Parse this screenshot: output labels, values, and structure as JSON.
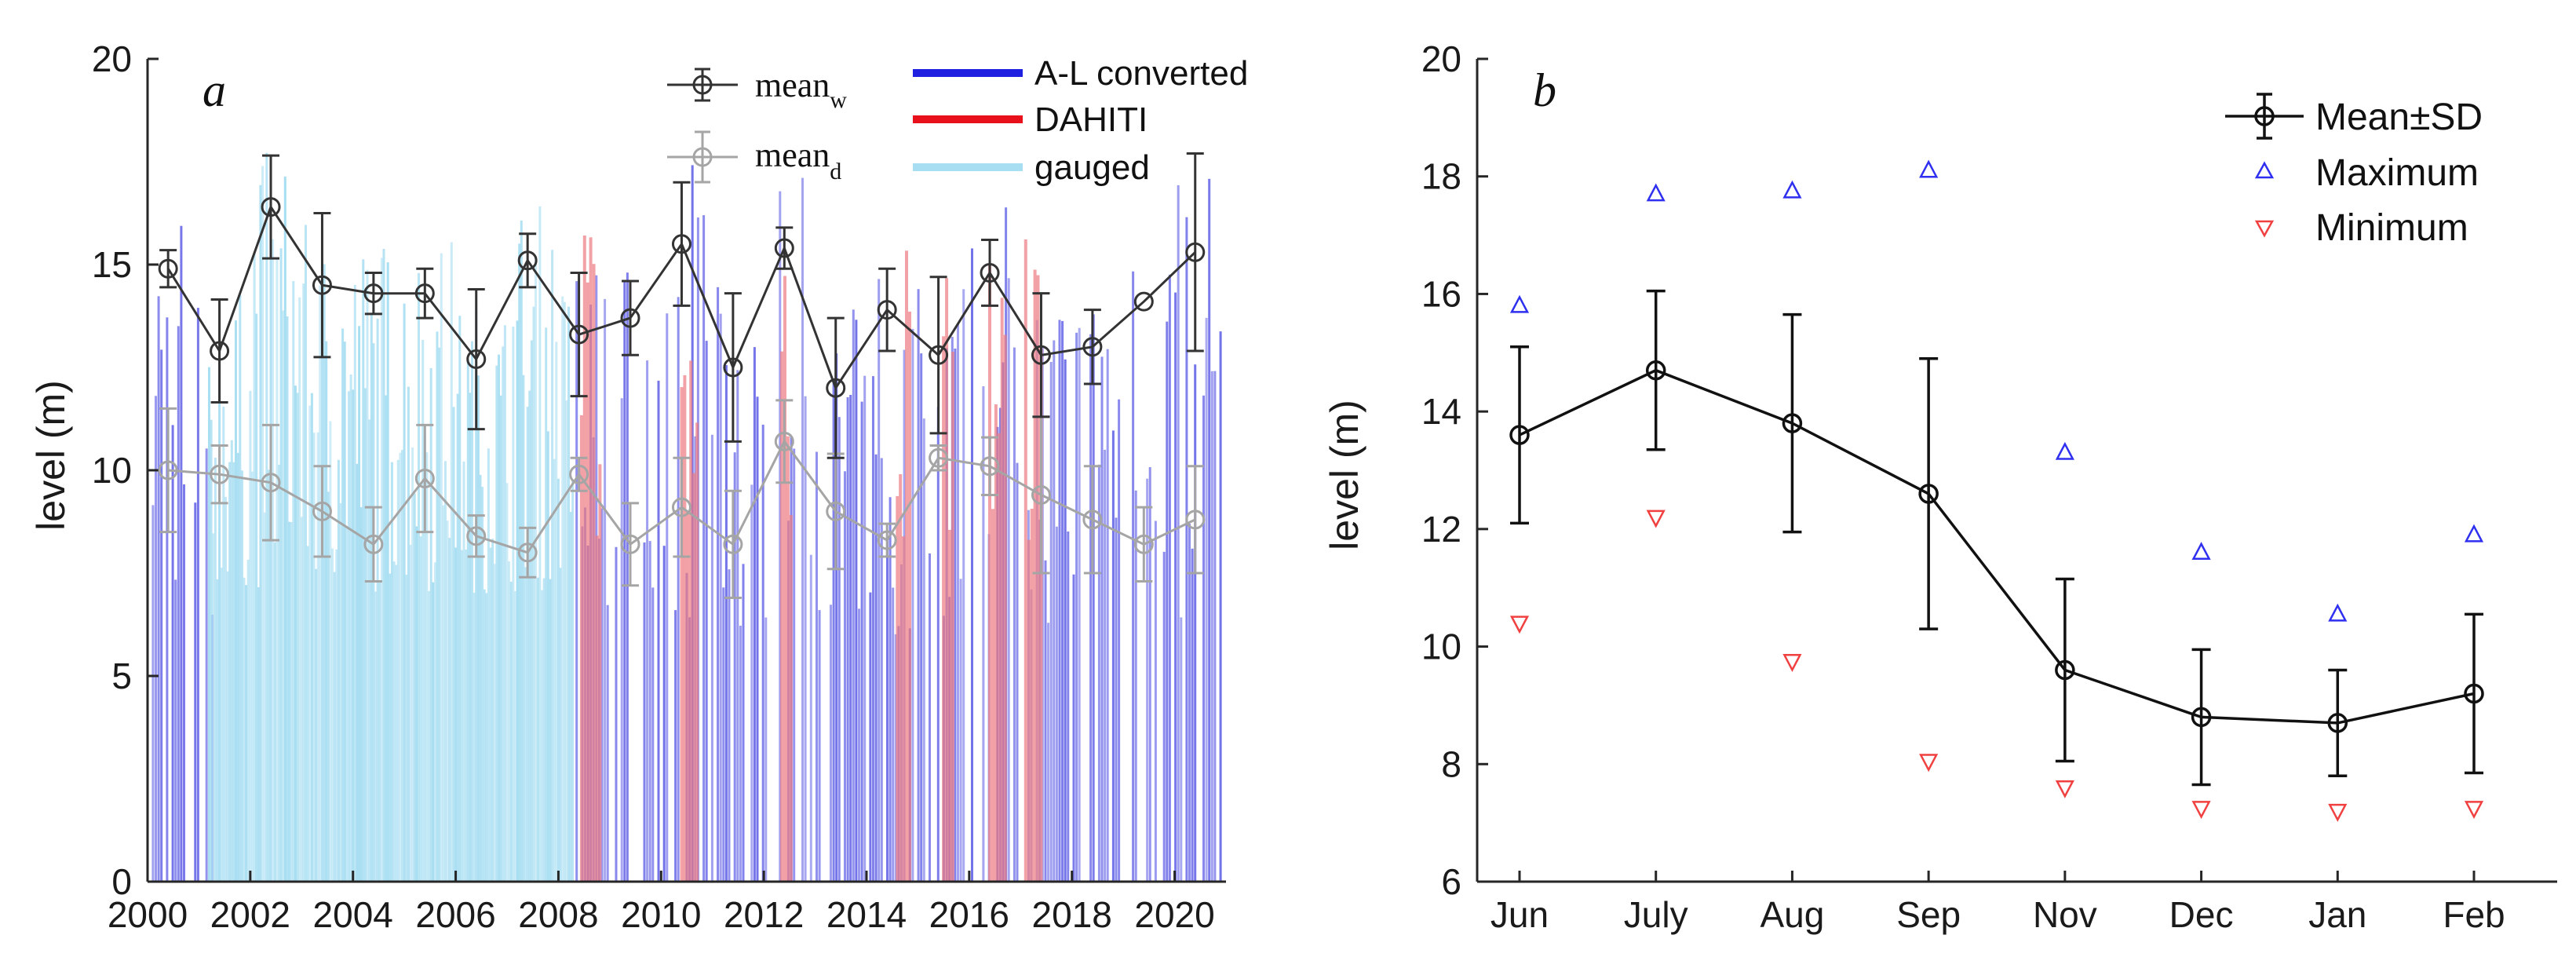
{
  "chart_data": [
    {
      "type": "line",
      "panel": "a",
      "title": "",
      "xlabel": "",
      "ylabel": "level (m)",
      "xlim": [
        2000,
        2021
      ],
      "ylim": [
        0,
        20
      ],
      "xticks": [
        2000,
        2002,
        2004,
        2006,
        2008,
        2010,
        2012,
        2014,
        2016,
        2018,
        2020
      ],
      "yticks": [
        0,
        5,
        10,
        15,
        20
      ],
      "legend": {
        "mean_w": {
          "main": "mean",
          "sub": "w"
        },
        "mean_d": {
          "main": "mean",
          "sub": "d"
        },
        "al": "A-L converted",
        "dahiti": "DAHITI",
        "gauged": "gauged"
      },
      "colors": {
        "al": "#2020e0",
        "al_bar": "#6a6ae8",
        "dahiti": "#e8101a",
        "dahiti_bar": "#ec7a80",
        "gauged": "#a8def2",
        "mean_w": "#333333",
        "mean_d": "#a5a5a5"
      },
      "series": [
        {
          "name": "mean_w",
          "x": [
            2000.4,
            2001.4,
            2002.4,
            2003.4,
            2004.4,
            2005.4,
            2006.4,
            2007.4,
            2008.4,
            2009.4,
            2010.4,
            2011.4,
            2012.4,
            2013.4,
            2014.4,
            2015.4,
            2016.4,
            2017.4,
            2018.4,
            2019.4,
            2020.4
          ],
          "y": [
            14.9,
            12.9,
            16.4,
            14.5,
            14.3,
            14.3,
            12.7,
            15.1,
            13.3,
            13.7,
            15.5,
            12.5,
            15.4,
            12.0,
            13.9,
            12.8,
            14.8,
            12.8,
            13.0,
            14.1,
            15.3
          ],
          "err": [
            0.45,
            1.25,
            1.25,
            1.75,
            0.5,
            0.6,
            1.7,
            0.65,
            1.5,
            0.9,
            1.5,
            1.8,
            0.5,
            1.7,
            1.0,
            1.9,
            0.8,
            1.5,
            0.9,
            0.0,
            2.4
          ]
        },
        {
          "name": "mean_d",
          "x": [
            2000.4,
            2001.4,
            2002.4,
            2003.4,
            2004.4,
            2005.4,
            2006.4,
            2007.4,
            2008.4,
            2009.4,
            2010.4,
            2011.4,
            2012.4,
            2013.4,
            2014.4,
            2015.4,
            2016.4,
            2017.4,
            2018.4,
            2019.4,
            2020.4
          ],
          "y": [
            10.0,
            9.9,
            9.7,
            9.0,
            8.2,
            9.8,
            8.4,
            8.0,
            9.9,
            8.2,
            9.1,
            8.2,
            10.7,
            9.0,
            8.3,
            10.3,
            10.1,
            9.4,
            8.8,
            8.2,
            8.8
          ],
          "err": [
            1.5,
            0.7,
            1.4,
            1.1,
            0.9,
            1.3,
            0.5,
            0.6,
            0.4,
            1.0,
            1.2,
            1.3,
            1.0,
            1.4,
            0.4,
            0.3,
            0.7,
            1.9,
            1.3,
            0.9,
            1.3
          ]
        }
      ]
    },
    {
      "type": "line",
      "panel": "b",
      "title": "",
      "xlabel": "",
      "ylabel": "level (m)",
      "categories": [
        "Jun",
        "July",
        "Aug",
        "Sep",
        "Nov",
        "Dec",
        "Jan",
        "Feb"
      ],
      "ylim": [
        6,
        20
      ],
      "yticks": [
        6,
        8,
        10,
        12,
        14,
        16,
        18,
        20
      ],
      "legend": {
        "mean": "Mean±SD",
        "max": "Maximum",
        "min": "Minimum"
      },
      "colors": {
        "mean": "#111111",
        "max": "#2f2ff0",
        "min": "#f04040"
      },
      "series": [
        {
          "name": "Mean±SD",
          "values": [
            13.6,
            14.7,
            13.8,
            12.6,
            9.6,
            8.8,
            8.7,
            9.2
          ],
          "err": [
            1.5,
            1.35,
            1.85,
            2.3,
            1.55,
            1.15,
            0.9,
            1.35
          ]
        },
        {
          "name": "Maximum",
          "values": [
            15.8,
            17.7,
            17.75,
            18.1,
            13.3,
            11.6,
            10.55,
            11.9
          ]
        },
        {
          "name": "Minimum",
          "values": [
            10.4,
            12.2,
            9.75,
            8.05,
            7.6,
            7.25,
            7.2,
            7.25
          ]
        }
      ]
    }
  ]
}
